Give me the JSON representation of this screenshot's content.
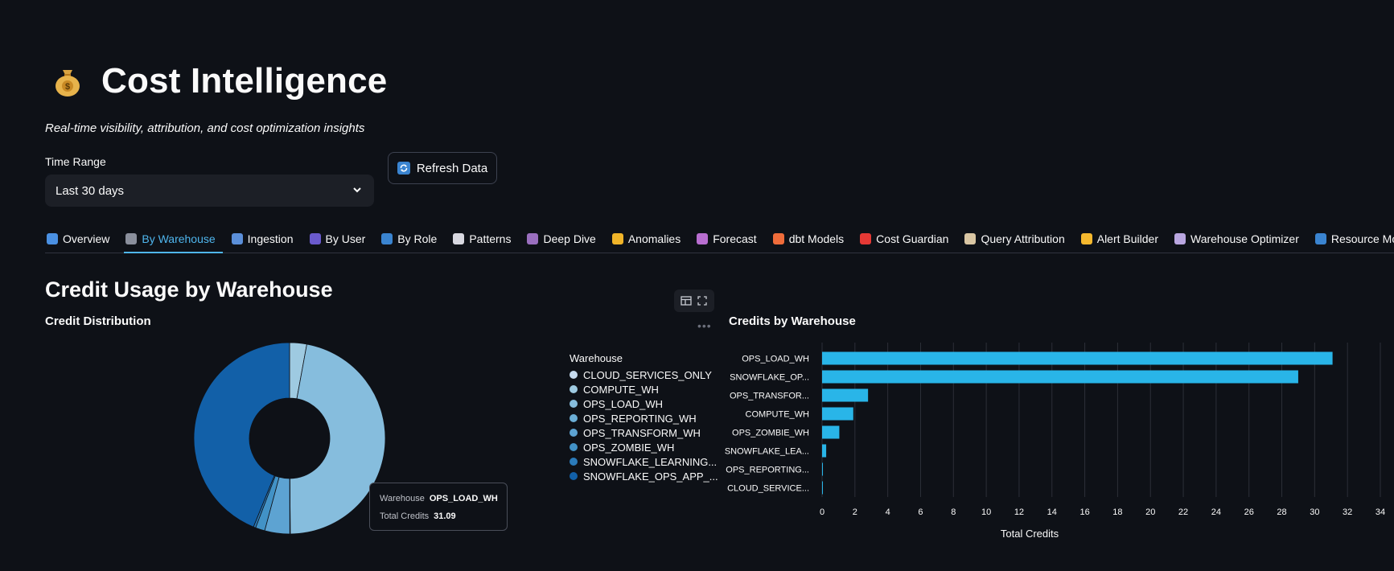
{
  "header": {
    "title": "Cost Intelligence",
    "title_icon": "money-bag-icon",
    "subtitle": "Real-time visibility, attribution, and cost optimization insights"
  },
  "controls": {
    "time_range_label": "Time Range",
    "time_range_value": "Last 30 days",
    "refresh_label": "Refresh Data"
  },
  "tabs": [
    {
      "label": "Overview",
      "icon": "chart-icon",
      "color": "#4a90e2"
    },
    {
      "label": "By Warehouse",
      "icon": "factory-icon",
      "color": "#8a8f9c",
      "active": true
    },
    {
      "label": "Ingestion",
      "icon": "inbox-icon",
      "color": "#5b8fd9"
    },
    {
      "label": "By User",
      "icon": "user-icon",
      "color": "#6a5acd"
    },
    {
      "label": "By Role",
      "icon": "shield-icon",
      "color": "#3a84d0"
    },
    {
      "label": "Patterns",
      "icon": "trend-icon",
      "color": "#d8d8e0"
    },
    {
      "label": "Deep Dive",
      "icon": "detective-icon",
      "color": "#9a6fbf"
    },
    {
      "label": "Anomalies",
      "icon": "warning-icon",
      "color": "#f0b429"
    },
    {
      "label": "Forecast",
      "icon": "fortune-icon",
      "color": "#b86ed0"
    },
    {
      "label": "dbt Models",
      "icon": "square-icon",
      "color": "#ef6c3a"
    },
    {
      "label": "Cost Guardian",
      "icon": "siren-icon",
      "color": "#e53935"
    },
    {
      "label": "Query Attribution",
      "icon": "clipboard-icon",
      "color": "#d9c6a3"
    },
    {
      "label": "Alert Builder",
      "icon": "bell-icon",
      "color": "#f5b82e"
    },
    {
      "label": "Warehouse Optimizer",
      "icon": "building-icon",
      "color": "#b9a6e0"
    },
    {
      "label": "Resource Monitors",
      "icon": "shield-icon",
      "color": "#3a84d0"
    }
  ],
  "section": {
    "title": "Credit Usage by Warehouse",
    "left_title": "Credit Distribution",
    "right_title": "Credits by Warehouse"
  },
  "colors": {
    "bar": "#29b5e8",
    "accent": "#4fb6ee",
    "background": "#0e1117"
  },
  "chart_data": [
    {
      "type": "pie",
      "legend_title": "Warehouse",
      "legend_placement": "right",
      "labels": [
        "CLOUD_SERVICES_ONLY",
        "COMPUTE_WH",
        "OPS_LOAD_WH",
        "OPS_REPORTING_WH",
        "OPS_TRANSFORM_WH",
        "OPS_ZOMBIE_WH",
        "SNOWFLAKE_LEARNING...",
        "SNOWFLAKE_OPS_APP_..."
      ],
      "values": [
        0.01,
        1.9,
        31.09,
        0.05,
        2.8,
        1.05,
        0.25,
        29.0
      ],
      "colors": [
        "#c6dbef",
        "#9ecae1",
        "#86bddd",
        "#6baed6",
        "#5da3d2",
        "#4292c6",
        "#2b7bba",
        "#1260a8"
      ],
      "tooltip": {
        "warehouse_label": "Warehouse",
        "warehouse_value": "OPS_LOAD_WH",
        "credits_label": "Total Credits",
        "credits_value": "31.09"
      }
    },
    {
      "type": "bar",
      "orientation": "horizontal",
      "categories": [
        "OPS_LOAD_WH",
        "SNOWFLAKE_OP...",
        "OPS_TRANSFOR...",
        "COMPUTE_WH",
        "OPS_ZOMBIE_WH",
        "SNOWFLAKE_LEA...",
        "OPS_REPORTING...",
        "CLOUD_SERVICE..."
      ],
      "values": [
        31.09,
        29.0,
        2.8,
        1.9,
        1.05,
        0.25,
        0.05,
        0.01
      ],
      "xlabel": "Total Credits",
      "xlim": [
        0,
        34
      ],
      "xticks": [
        "0",
        "2",
        "4",
        "6",
        "8",
        "10",
        "12",
        "14",
        "16",
        "18",
        "20",
        "22",
        "24",
        "26",
        "28",
        "30",
        "32",
        "34"
      ],
      "grid": true
    }
  ]
}
